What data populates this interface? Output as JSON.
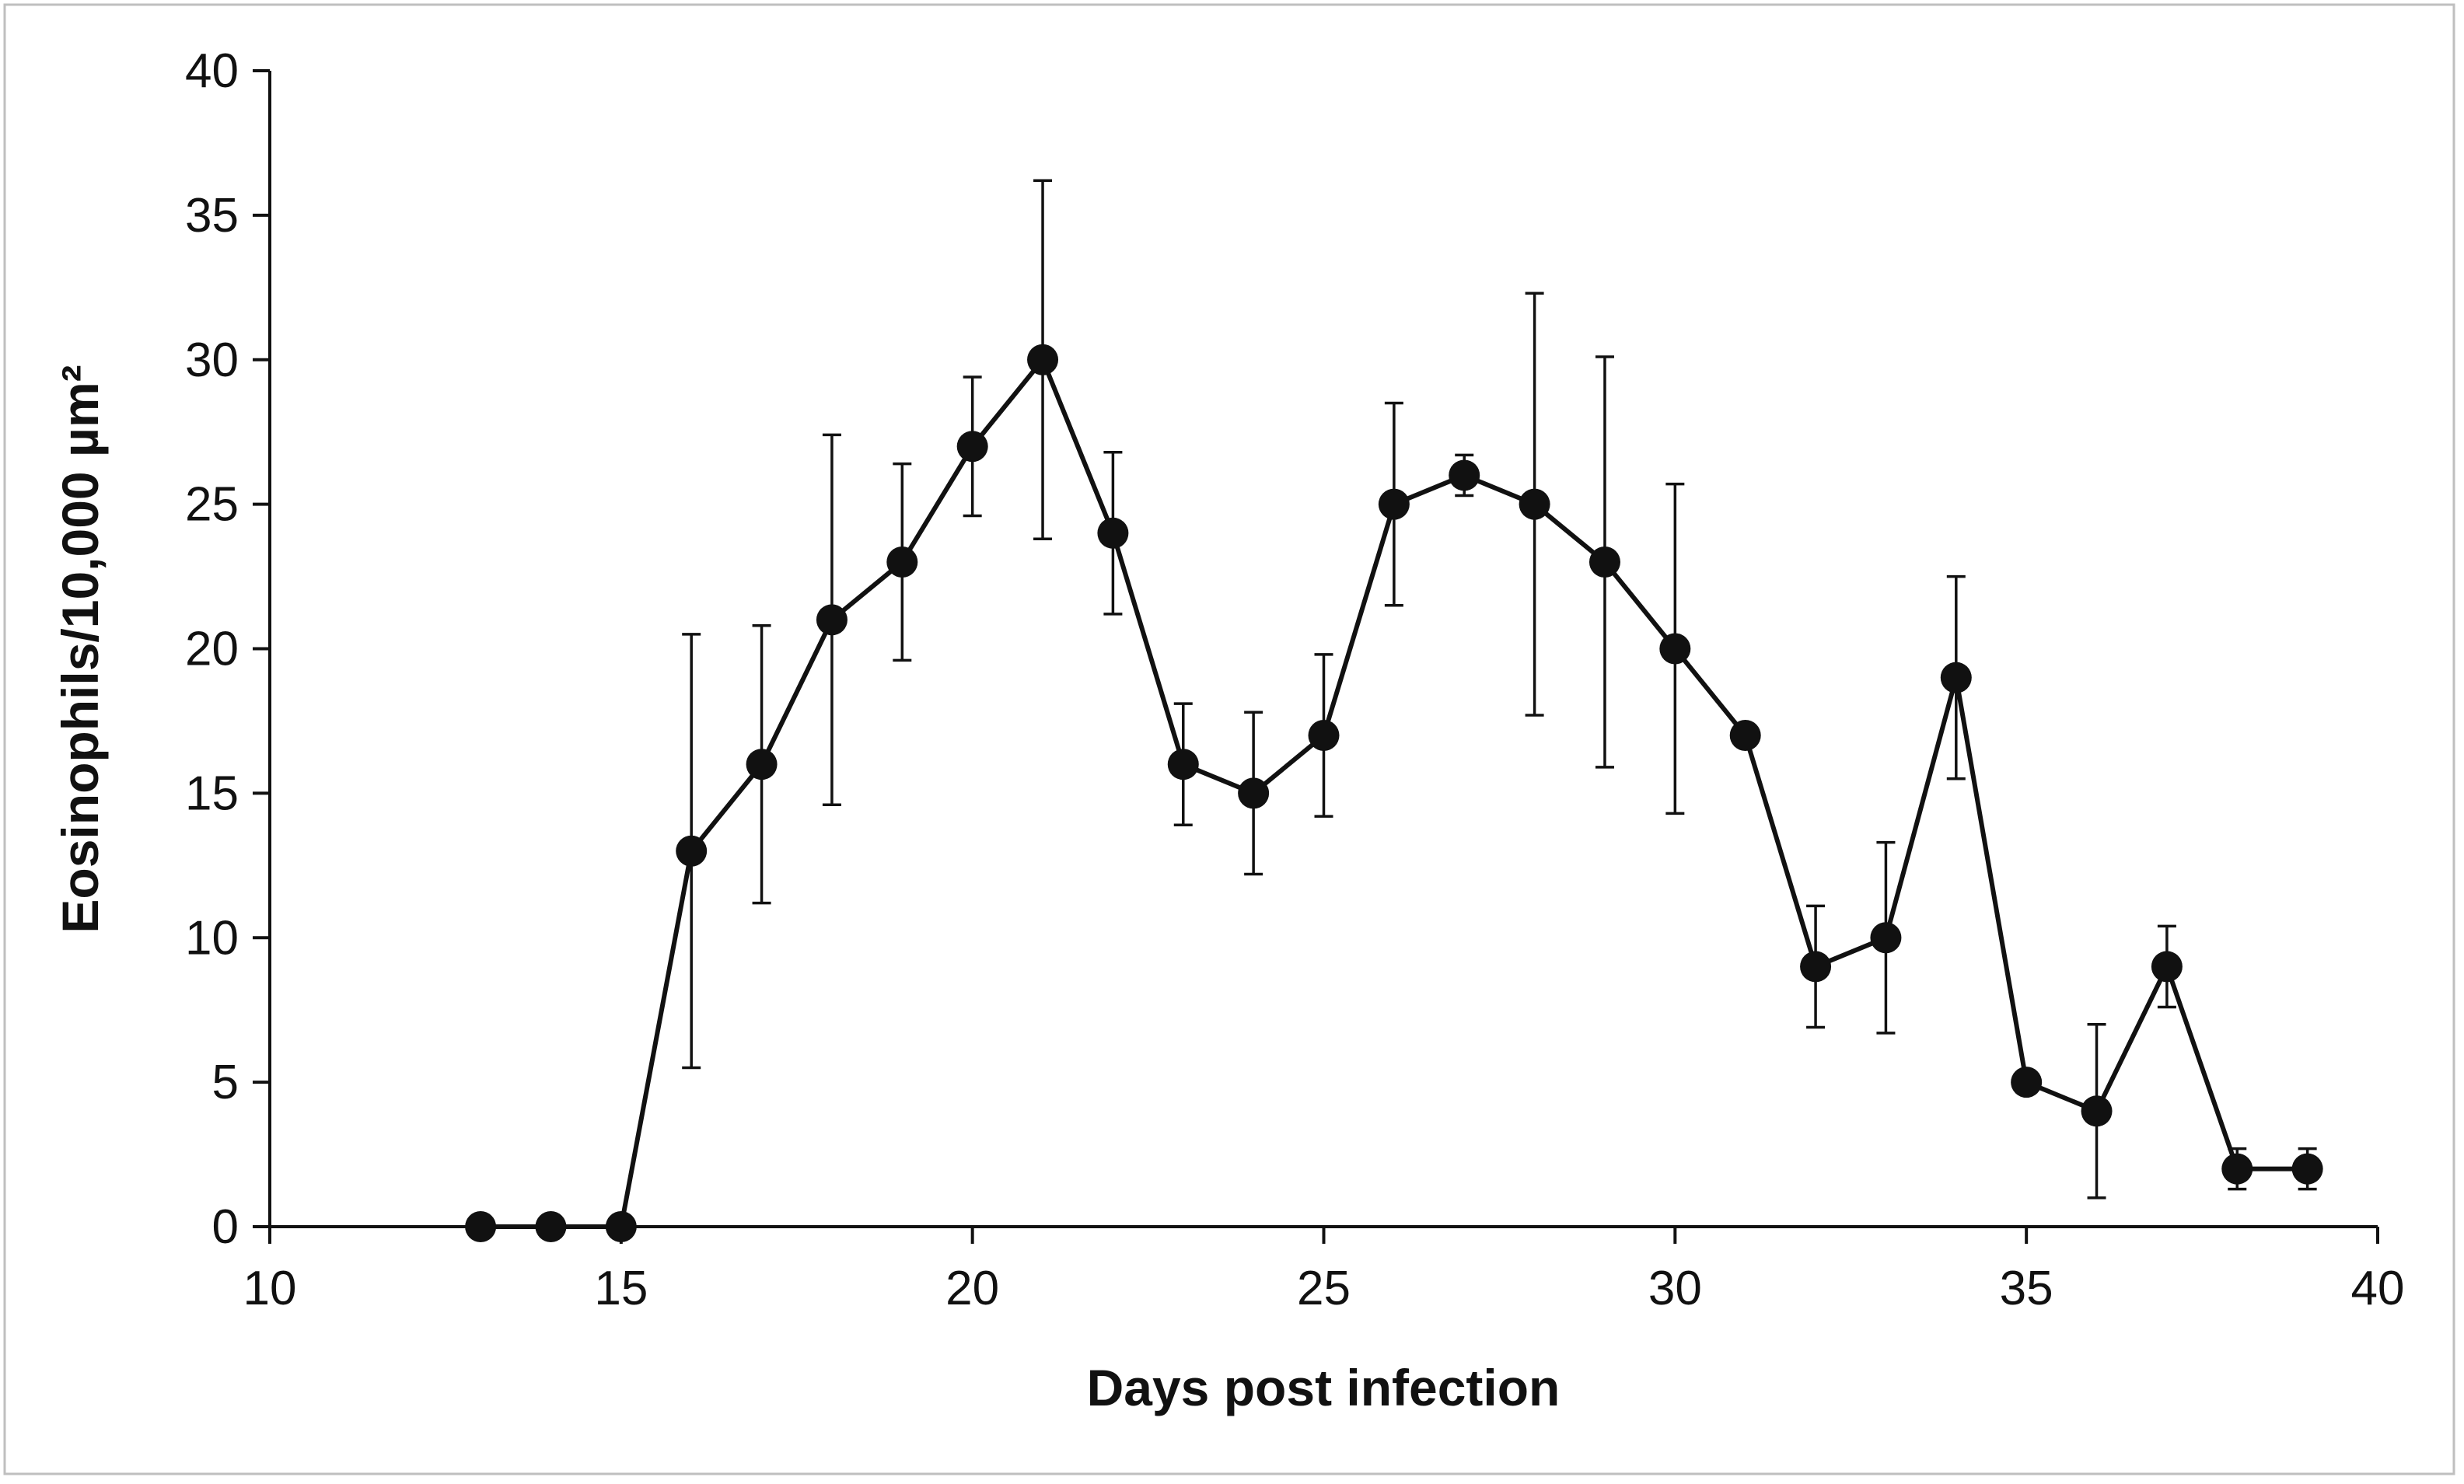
{
  "chart_data": {
    "type": "line",
    "title": "",
    "xlabel": "Days post infection",
    "ylabel": "Eosinophils/10,000 µm²",
    "xlim": [
      10,
      40
    ],
    "ylim": [
      0,
      40
    ],
    "xticks": [
      10,
      15,
      20,
      25,
      30,
      35,
      40
    ],
    "yticks": [
      0,
      5,
      10,
      15,
      20,
      25,
      30,
      35,
      40
    ],
    "grid": false,
    "legend": "none",
    "series": [
      {
        "name": "Eosinophils",
        "color": "#111111",
        "points": [
          {
            "x": 13,
            "y": 0,
            "err": null
          },
          {
            "x": 14,
            "y": 0,
            "err": null
          },
          {
            "x": 15,
            "y": 0,
            "err": null
          },
          {
            "x": 16,
            "y": 13,
            "err": 7.5
          },
          {
            "x": 17,
            "y": 16,
            "err": 4.8
          },
          {
            "x": 18,
            "y": 21,
            "err": 6.4
          },
          {
            "x": 19,
            "y": 23,
            "err": 3.4
          },
          {
            "x": 20,
            "y": 27,
            "err": 2.4
          },
          {
            "x": 21,
            "y": 30,
            "err": 6.2
          },
          {
            "x": 22,
            "y": 24,
            "err": 2.8
          },
          {
            "x": 23,
            "y": 16,
            "err": 2.1
          },
          {
            "x": 24,
            "y": 15,
            "err": 2.8
          },
          {
            "x": 25,
            "y": 17,
            "err": 2.8
          },
          {
            "x": 26,
            "y": 25,
            "err": 3.5
          },
          {
            "x": 27,
            "y": 26,
            "err": 0.7
          },
          {
            "x": 28,
            "y": 25,
            "err": 7.3
          },
          {
            "x": 29,
            "y": 23,
            "err": 7.1
          },
          {
            "x": 30,
            "y": 20,
            "err": 5.7
          },
          {
            "x": 31,
            "y": 17,
            "err": null
          },
          {
            "x": 32,
            "y": 9,
            "err": 2.1
          },
          {
            "x": 33,
            "y": 10,
            "err": 3.3
          },
          {
            "x": 34,
            "y": 19,
            "err": 3.5
          },
          {
            "x": 35,
            "y": 5,
            "err": null
          },
          {
            "x": 36,
            "y": 4,
            "err": 3.0
          },
          {
            "x": 37,
            "y": 9,
            "err": 1.4
          },
          {
            "x": 38,
            "y": 2,
            "err": 0.7
          },
          {
            "x": 39,
            "y": 2,
            "err": 0.7
          }
        ]
      }
    ]
  }
}
